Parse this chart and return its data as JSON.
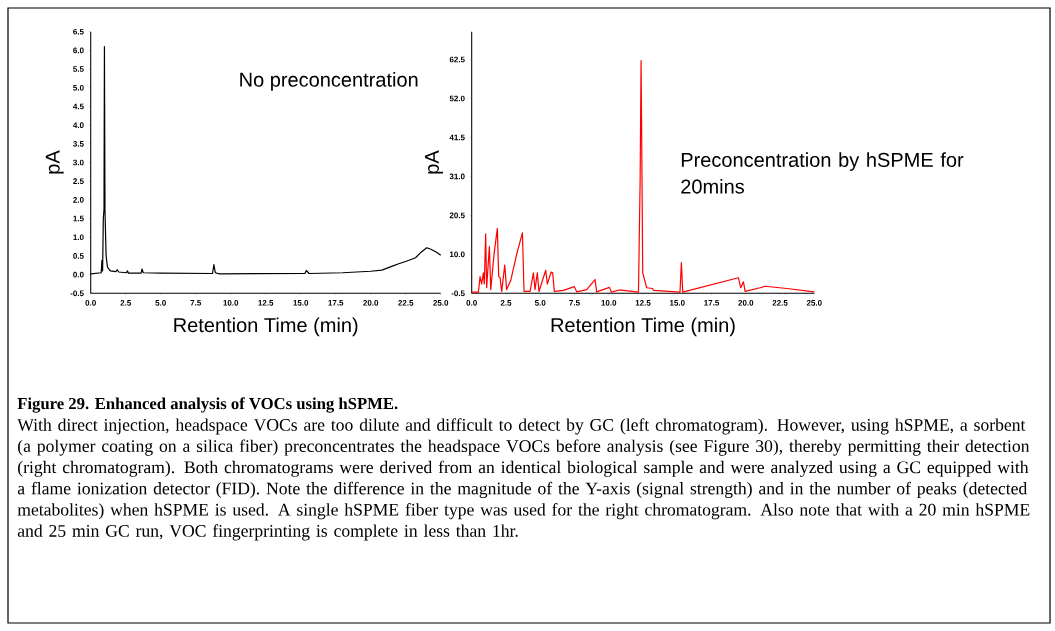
{
  "chart_data": [
    {
      "type": "line",
      "xlabel": "Retention Time (min)",
      "ylabel": "pA",
      "marker": "none",
      "line_style": "solid",
      "xlim": [
        0,
        25
      ],
      "ylim": [
        -0.5,
        6.5
      ],
      "xticks": [
        {
          "value": 0,
          "label": "0.0"
        },
        {
          "value": 2.5,
          "label": "2.5"
        },
        {
          "value": 5,
          "label": "5.0"
        },
        {
          "value": 7.5,
          "label": "7.5"
        },
        {
          "value": 10,
          "label": "10.0"
        },
        {
          "value": 12.5,
          "label": "12.5"
        },
        {
          "value": 15,
          "label": "15.0"
        },
        {
          "value": 17.5,
          "label": "17.5"
        },
        {
          "value": 20,
          "label": "20.0"
        },
        {
          "value": 22.5,
          "label": "22.5"
        },
        {
          "value": 25,
          "label": "25.0"
        }
      ],
      "yticks": [
        -0.5,
        {
          "value": 0,
          "label": "0.0"
        },
        0.5,
        {
          "value": 1,
          "label": "1.0"
        },
        1.5,
        {
          "value": 2,
          "label": "2.0"
        },
        2.5,
        {
          "value": 3,
          "label": "3.0"
        },
        3.5,
        {
          "value": 4,
          "label": "4.0"
        },
        4.5,
        {
          "value": 5,
          "label": "5.0"
        },
        5.5,
        {
          "value": 6,
          "label": "6.0"
        },
        6.5
      ],
      "series": [
        {
          "color": "#000000",
          "x": [
            0,
            0.75,
            0.8,
            0.85,
            0.9,
            0.95,
            0.98,
            1.02,
            1.1,
            1.2,
            1.4,
            1.8,
            1.9,
            2.0,
            2.55,
            2.62,
            2.7,
            3.6,
            3.67,
            3.75,
            5,
            8.7,
            8.8,
            8.9,
            9.2,
            15.3,
            15.4,
            15.6,
            18,
            20,
            20.8,
            21.5,
            22,
            22.5,
            23.2,
            23.6,
            24.0,
            24.3,
            24.7,
            25
          ],
          "values": [
            0.02,
            0.05,
            0.38,
            0.1,
            1.5,
            1.75,
            6.1,
            1.7,
            0.5,
            0.2,
            0.1,
            0.08,
            0.13,
            0.07,
            0.05,
            0.1,
            0.04,
            0.04,
            0.15,
            0.05,
            0.04,
            0.03,
            0.27,
            0.05,
            0.02,
            0.03,
            0.11,
            0.03,
            0.05,
            0.09,
            0.12,
            0.22,
            0.29,
            0.35,
            0.45,
            0.6,
            0.72,
            0.68,
            0.6,
            0.52
          ]
        }
      ],
      "annotations": [
        "No preconcentration"
      ]
    },
    {
      "type": "line",
      "xlabel": "Retention Time (min)",
      "ylabel": "pA",
      "marker": "none",
      "line_style": "solid",
      "xlim": [
        0,
        25
      ],
      "ylim": [
        -0.5,
        70
      ],
      "xticks": [
        {
          "value": 0,
          "label": "0.0"
        },
        {
          "value": 2.5,
          "label": "2.5"
        },
        {
          "value": 5,
          "label": "5.0"
        },
        {
          "value": 7.5,
          "label": "7.5"
        },
        {
          "value": 10,
          "label": "10.0"
        },
        {
          "value": 12.5,
          "label": "12.5"
        },
        {
          "value": 15,
          "label": "15.0"
        },
        {
          "value": 17.5,
          "label": "17.5"
        },
        {
          "value": 20,
          "label": "20.0"
        },
        {
          "value": 22.5,
          "label": "22.5"
        },
        {
          "value": 25,
          "label": "25.0"
        }
      ],
      "yticks": [
        -0.5,
        {
          "value": 10,
          "label": "10.0"
        },
        20.5,
        {
          "value": 31,
          "label": "31.0"
        },
        41.5,
        {
          "value": 52,
          "label": "52.0"
        },
        62.5
      ],
      "series": [
        {
          "color": "#ff0000",
          "x": [
            0,
            0.49,
            0.61,
            0.73,
            0.85,
            0.92,
            1.02,
            1.09,
            1.29,
            1.39,
            1.63,
            1.87,
            1.97,
            2.07,
            2.19,
            2.41,
            2.55,
            2.85,
            3.28,
            3.7,
            3.82,
            4.26,
            4.5,
            4.62,
            4.79,
            4.91,
            5.4,
            5.52,
            5.79,
            5.91,
            6.03,
            6.69,
            7.49,
            7.66,
            8.39,
            9.0,
            9.12,
            10.05,
            10.2,
            10.78,
            12.17,
            12.29,
            12.36,
            12.48,
            12.77,
            13.2,
            13.26,
            15.2,
            15.3,
            15.4,
            19.46,
            19.63,
            19.83,
            19.95,
            21.05,
            21.4,
            23,
            25
          ],
          "values": [
            -0.2,
            -0.2,
            4.0,
            2,
            5,
            2,
            15.5,
            1,
            12.1,
            0.5,
            10,
            17.0,
            4,
            3.7,
            0,
            7.1,
            0.5,
            3,
            10,
            15.8,
            0,
            0,
            5,
            0.5,
            5,
            0,
            5.7,
            2,
            5.2,
            5,
            0,
            0.3,
            1.3,
            -0.1,
            0.5,
            3.2,
            -0.1,
            1.1,
            -0.2,
            0.4,
            -0.2,
            30,
            62.2,
            5,
            1,
            0.8,
            0.3,
            -0.2,
            7.8,
            -0.2,
            3.7,
            1,
            2.6,
            0,
            1,
            1.4,
            0.8,
            -0.1
          ]
        }
      ],
      "annotations": [
        "Preconcentration by hSPME for 20mins",
        "Figure 29. Enhanced analysis of VOCs using hSPME.",
        "With direct injection, headspace VOCs are too dilute and difficult to detect by GC (left chromatogram). However, using hSPME, a sorbent (a polymer coating on a silica fiber) preconcentrates the headspace VOCs before analysis (see Figure 30), thereby permitting their detection (right chromatogram). Both chromatograms were derived from an identical biological sample and were analyzed using a GC equipped with a flame ionization detector (FID). Note the difference in the magnitude of the Y-axis (signal strength) and in the number of peaks (detected metabolites) when hSPME is used. A single hSPME fiber type was used for the right chromatogram. Also note that with a 20 min hSPME and 25 min GC run, VOC fingerprinting is complete in less than 1hr."
      ]
    }
  ]
}
